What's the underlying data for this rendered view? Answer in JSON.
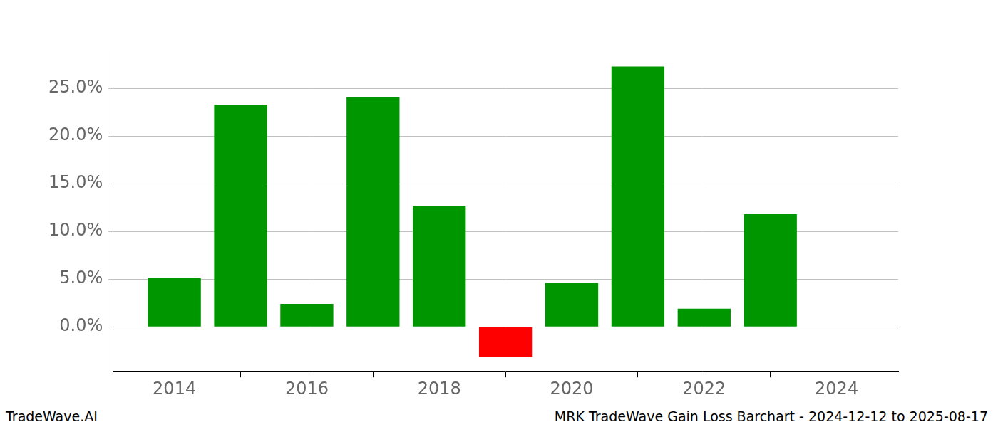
{
  "chart_data": {
    "type": "bar",
    "title": "MRK TradeWave Gain Loss Barchart - 2024-12-12 to 2025-08-17",
    "annotations": [
      "TradeWave.AI"
    ],
    "x": [
      2014,
      2015,
      2016,
      2017,
      2018,
      2019,
      2020,
      2021,
      2022,
      2023
    ],
    "values": [
      5.1,
      23.3,
      2.4,
      24.1,
      12.7,
      -3.2,
      4.6,
      27.3,
      1.9,
      11.8
    ],
    "colors": [
      "#009600",
      "#009600",
      "#009600",
      "#009600",
      "#009600",
      "#ff0000",
      "#009600",
      "#009600",
      "#009600",
      "#009600"
    ],
    "xlim": [
      2013.07,
      2024.93
    ],
    "xticks": [
      2014,
      2016,
      2018,
      2020,
      2022,
      2024
    ],
    "ylim": [
      -4.7,
      28.9
    ],
    "yticks": [
      {
        "value": 0,
        "label": "0.0%"
      },
      {
        "value": 5,
        "label": "5.0%"
      },
      {
        "value": 10,
        "label": "10.0%"
      },
      {
        "value": 15,
        "label": "15.0%"
      },
      {
        "value": 20,
        "label": "20.0%"
      },
      {
        "value": 25,
        "label": "25.0%"
      }
    ],
    "grid": true
  }
}
